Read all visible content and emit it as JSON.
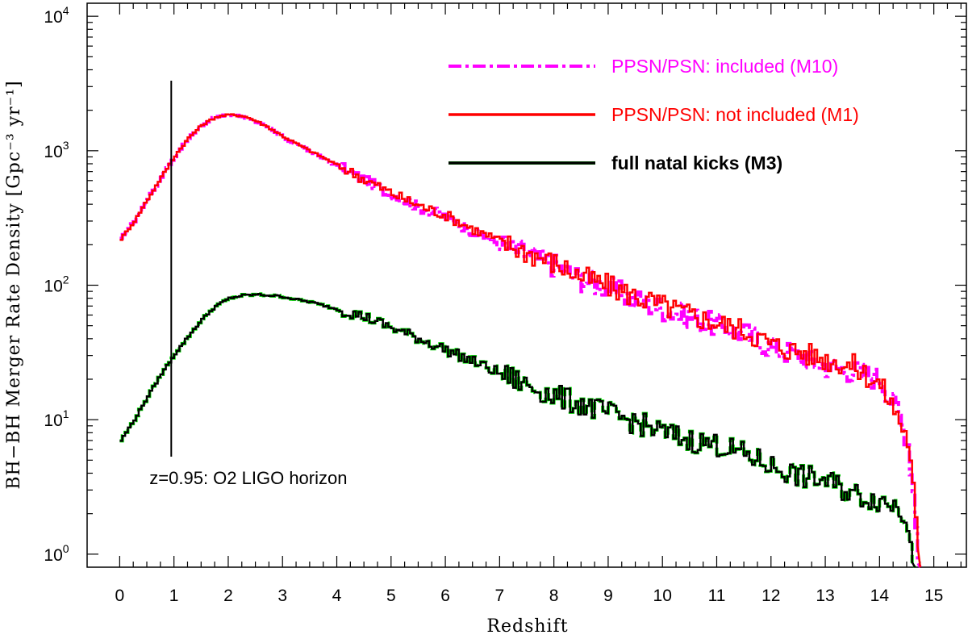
{
  "chart_data": {
    "type": "line",
    "title": "",
    "xlabel": "Redshift",
    "ylabel": "BH−BH Merger Rate Density [Gpc⁻³ yr⁻¹]",
    "xlim": [
      -0.6,
      15.6
    ],
    "ylim": [
      0.8,
      12500
    ],
    "yscale": "log",
    "xticks": [
      "0",
      "1",
      "2",
      "3",
      "4",
      "5",
      "6",
      "7",
      "8",
      "9",
      "10",
      "11",
      "12",
      "13",
      "14",
      "15"
    ],
    "ytick_labels": [
      {
        "base": "10",
        "exp": "0",
        "value": 1
      },
      {
        "base": "10",
        "exp": "1",
        "value": 10
      },
      {
        "base": "10",
        "exp": "2",
        "value": 100
      },
      {
        "base": "10",
        "exp": "3",
        "value": 1000
      },
      {
        "base": "10",
        "exp": "4",
        "value": 10000
      }
    ],
    "legend_position": "top-right",
    "series": [
      {
        "name": "PPSN/PSN: included (M10)",
        "color": "#ff00ff",
        "style": "dashdot",
        "x": [
          0.0,
          0.25,
          0.5,
          0.75,
          1.0,
          1.25,
          1.5,
          1.75,
          2.0,
          2.25,
          2.5,
          2.75,
          3.0,
          3.5,
          4.0,
          4.5,
          5.0,
          5.5,
          6.0,
          6.5,
          7.0,
          7.5,
          8.0,
          8.5,
          9.0,
          9.5,
          10.0,
          10.5,
          11.0,
          11.5,
          12.0,
          12.5,
          13.0,
          13.5,
          14.0,
          14.3,
          14.5,
          14.6,
          14.7
        ],
        "values": [
          220,
          300,
          440,
          640,
          920,
          1250,
          1560,
          1780,
          1840,
          1800,
          1640,
          1450,
          1250,
          980,
          770,
          600,
          470,
          380,
          320,
          250,
          200,
          170,
          140,
          110,
          95,
          78,
          66,
          58,
          50,
          44,
          34,
          30,
          25,
          23,
          20,
          12,
          7,
          3,
          1
        ]
      },
      {
        "name": "PPSN/PSN: not included (M1)",
        "color": "#ff0000",
        "style": "solid",
        "x": [
          0.0,
          0.25,
          0.5,
          0.75,
          1.0,
          1.25,
          1.5,
          1.75,
          2.0,
          2.25,
          2.5,
          2.75,
          3.0,
          3.5,
          4.0,
          4.5,
          5.0,
          5.5,
          6.0,
          6.5,
          7.0,
          7.5,
          8.0,
          8.5,
          9.0,
          9.5,
          10.0,
          10.5,
          11.0,
          11.5,
          12.0,
          12.5,
          13.0,
          13.5,
          14.0,
          14.3,
          14.5,
          14.6,
          14.7
        ],
        "values": [
          220,
          300,
          440,
          640,
          920,
          1250,
          1560,
          1780,
          1850,
          1820,
          1660,
          1470,
          1270,
          990,
          780,
          610,
          480,
          390,
          330,
          260,
          210,
          175,
          145,
          115,
          98,
          82,
          70,
          60,
          52,
          46,
          36,
          32,
          28,
          25,
          18,
          11,
          7,
          3,
          1
        ]
      },
      {
        "name": "full natal kicks (M3)",
        "color": "#000000",
        "halo": "#00dd00",
        "style": "solid",
        "x": [
          0.0,
          0.25,
          0.5,
          0.75,
          1.0,
          1.25,
          1.5,
          1.75,
          2.0,
          2.25,
          2.5,
          2.75,
          3.0,
          3.25,
          3.5,
          4.0,
          4.5,
          5.0,
          5.5,
          6.0,
          6.5,
          7.0,
          7.5,
          8.0,
          8.5,
          9.0,
          9.5,
          10.0,
          10.5,
          11.0,
          11.5,
          12.0,
          12.5,
          13.0,
          13.5,
          14.0,
          14.3,
          14.5,
          14.6
        ],
        "values": [
          7,
          10,
          15,
          22,
          31,
          42,
          56,
          70,
          80,
          84,
          85,
          84,
          82,
          78,
          75,
          66,
          58,
          48,
          40,
          33,
          27,
          22,
          18,
          15,
          13,
          11,
          9.5,
          8,
          7,
          6.5,
          5.5,
          4.5,
          3.8,
          3.5,
          2.8,
          2.5,
          2.3,
          1.8,
          1
        ]
      }
    ],
    "annotations": [
      {
        "text": "z=0.95: O2 LIGO horizon",
        "x": 0.95
      }
    ]
  }
}
